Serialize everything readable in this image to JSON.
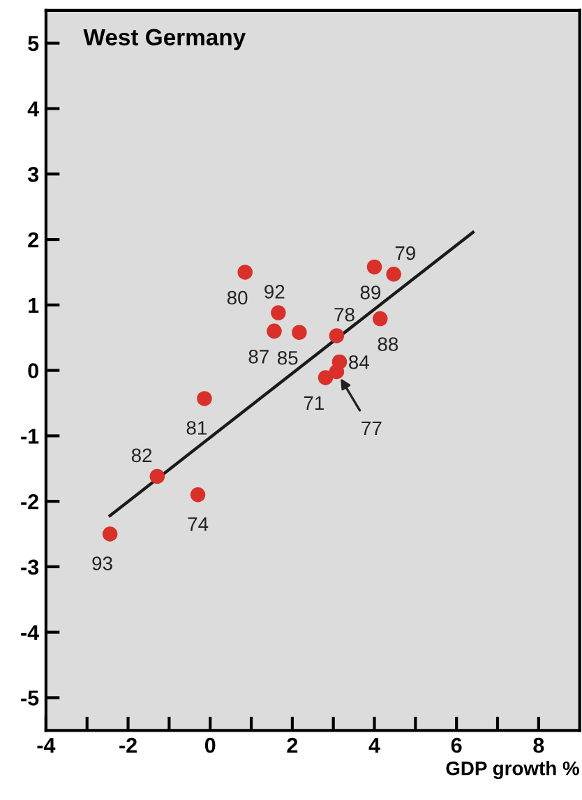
{
  "chart_data": {
    "type": "scatter",
    "title": "West Germany",
    "xlabel": "GDP growth %",
    "xlim": [
      -4,
      9
    ],
    "ylim": [
      -5.5,
      5.5
    ],
    "xticks": [
      -4,
      {
        "value": -3,
        "label": null
      },
      -2,
      {
        "value": -1,
        "label": null
      },
      0,
      {
        "value": 1,
        "label": null
      },
      2,
      {
        "value": 3,
        "label": null
      },
      4,
      {
        "value": 5,
        "label": null
      },
      6,
      {
        "value": 7,
        "label": null
      },
      8
    ],
    "yticks": [
      -5,
      -4,
      -3,
      -2,
      -1,
      0,
      1,
      2,
      3,
      4,
      5
    ],
    "grid": false,
    "legend": false,
    "series": [
      {
        "marker": "circle",
        "color": "#d9302a",
        "x": [
          0.85,
          1.66,
          1.56,
          2.17,
          3.08,
          4.0,
          4.47,
          4.14,
          3.15,
          2.81,
          3.08,
          -0.14,
          -1.29,
          -0.3,
          -2.44
        ],
        "values": [
          1.5,
          0.88,
          0.6,
          0.58,
          0.53,
          1.58,
          1.47,
          0.79,
          0.13,
          -0.11,
          -0.02,
          -0.43,
          -1.62,
          -1.9,
          -2.5
        ]
      },
      {
        "type": "line",
        "color": "#1a1a1a",
        "x": [
          -2.44,
          6.4
        ],
        "values": [
          -2.22,
          2.11
        ]
      }
    ],
    "annotations": [
      {
        "text": "80",
        "x": 0.85,
        "y": 1.5
      },
      {
        "text": "92",
        "x": 1.66,
        "y": 0.88
      },
      {
        "text": "87",
        "x": 1.56,
        "y": 0.6
      },
      {
        "text": "85",
        "x": 2.17,
        "y": 0.58
      },
      {
        "text": "78",
        "x": 3.08,
        "y": 0.53
      },
      {
        "text": "89",
        "x": 4.0,
        "y": 1.58
      },
      {
        "text": "79",
        "x": 4.47,
        "y": 1.47
      },
      {
        "text": "88",
        "x": 4.14,
        "y": 0.79
      },
      {
        "text": "84",
        "x": 3.15,
        "y": 0.13
      },
      {
        "text": "71",
        "x": 2.81,
        "y": -0.11
      },
      {
        "text": "77",
        "x": 3.08,
        "y": -0.02
      },
      {
        "text": "81",
        "x": -0.14,
        "y": -0.43
      },
      {
        "text": "82",
        "x": -1.29,
        "y": -1.62
      },
      {
        "text": "74",
        "x": -0.3,
        "y": -1.9
      },
      {
        "text": "93",
        "x": -2.44,
        "y": -2.5
      }
    ]
  }
}
